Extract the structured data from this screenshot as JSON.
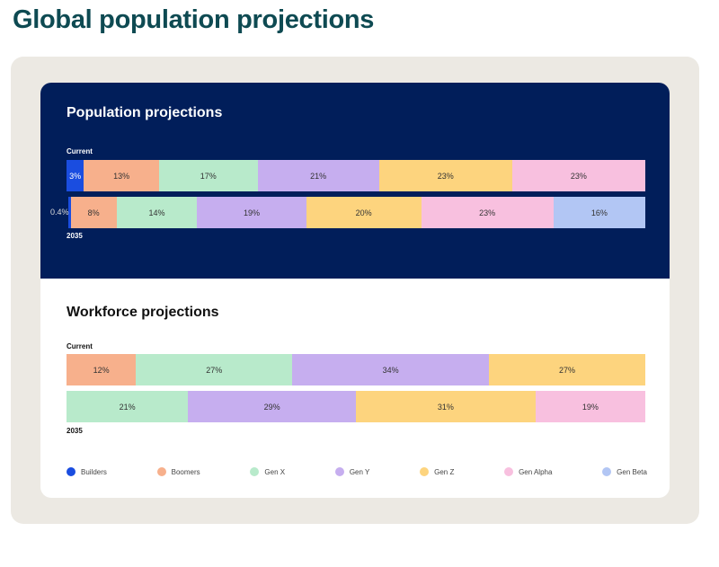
{
  "page_title": "Global population projections",
  "colors": {
    "Builders": "#1a4de0",
    "Boomers": "#f7b08c",
    "Gen X": "#b8eacb",
    "Gen Y": "#c6aeef",
    "Gen Z": "#fdd47e",
    "Gen Alpha": "#f8c0df",
    "Gen Beta": "#b2c6f4",
    "navy": "#011e5a"
  },
  "chart_data": [
    {
      "type": "bar",
      "stacked": true,
      "orientation": "horizontal",
      "title": "Population projections",
      "rows": [
        {
          "label": "Current",
          "segments": [
            {
              "name": "Builders",
              "value": 3,
              "text": "3%"
            },
            {
              "name": "Boomers",
              "value": 13,
              "text": "13%"
            },
            {
              "name": "Gen X",
              "value": 17,
              "text": "17%"
            },
            {
              "name": "Gen Y",
              "value": 21,
              "text": "21%"
            },
            {
              "name": "Gen Z",
              "value": 23,
              "text": "23%"
            },
            {
              "name": "Gen Alpha",
              "value": 23,
              "text": "23%"
            }
          ]
        },
        {
          "label": "2035",
          "segments": [
            {
              "name": "Builders",
              "value": 0.4,
              "text": "0.4%"
            },
            {
              "name": "Boomers",
              "value": 8,
              "text": "8%"
            },
            {
              "name": "Gen X",
              "value": 14,
              "text": "14%"
            },
            {
              "name": "Gen Y",
              "value": 19,
              "text": "19%"
            },
            {
              "name": "Gen Z",
              "value": 20,
              "text": "20%"
            },
            {
              "name": "Gen Alpha",
              "value": 23,
              "text": "23%"
            },
            {
              "name": "Gen Beta",
              "value": 16,
              "text": "16%"
            }
          ]
        }
      ]
    },
    {
      "type": "bar",
      "stacked": true,
      "orientation": "horizontal",
      "title": "Workforce projections",
      "rows": [
        {
          "label": "Current",
          "segments": [
            {
              "name": "Boomers",
              "value": 12,
              "text": "12%"
            },
            {
              "name": "Gen X",
              "value": 27,
              "text": "27%"
            },
            {
              "name": "Gen Y",
              "value": 34,
              "text": "34%"
            },
            {
              "name": "Gen Z",
              "value": 27,
              "text": "27%"
            }
          ]
        },
        {
          "label": "2035",
          "segments": [
            {
              "name": "Gen X",
              "value": 21,
              "text": "21%"
            },
            {
              "name": "Gen Y",
              "value": 29,
              "text": "29%"
            },
            {
              "name": "Gen Z",
              "value": 31,
              "text": "31%"
            },
            {
              "name": "Gen Alpha",
              "value": 19,
              "text": "19%"
            }
          ]
        }
      ]
    }
  ],
  "legend": [
    "Builders",
    "Boomers",
    "Gen X",
    "Gen Y",
    "Gen Z",
    "Gen Alpha",
    "Gen Beta"
  ]
}
